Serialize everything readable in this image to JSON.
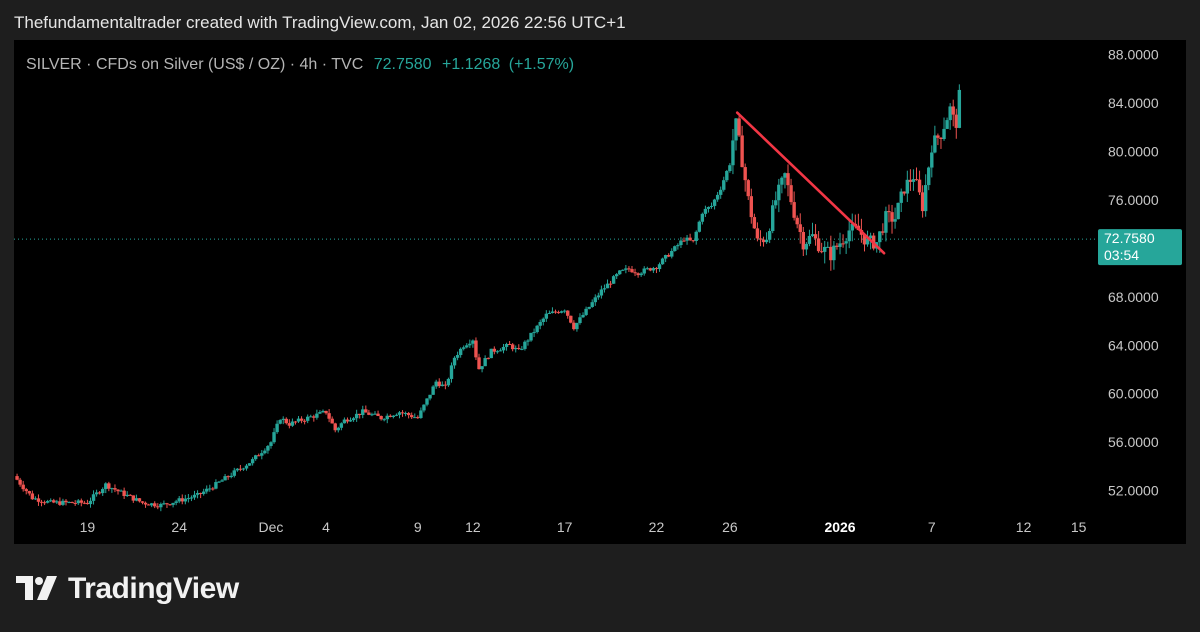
{
  "header": {
    "caption": "Thefundamentaltrader created with TradingView.com, Jan 02, 2026 22:56 UTC+1"
  },
  "legend": {
    "symbol_text": "SILVER · CFDs on Silver (US$ / OZ) · 4h · TVC",
    "last": "72.7580",
    "change": "+1.1268",
    "change_pct": "(+1.57%)"
  },
  "price_tag": {
    "price": "72.7580",
    "countdown": "03:54"
  },
  "footer": {
    "brand": "TradingView"
  },
  "colors": {
    "up": "#26a69a",
    "down": "#ef5350",
    "trendline": "#f23645",
    "last_tag": "#26a69a",
    "axis_text": "#c8c8c8",
    "background": "#000000"
  },
  "chart_data": {
    "type": "candlestick",
    "timeframe": "4h",
    "title": "SILVER · CFDs on Silver (US$ / OZ) · 4h · TVC",
    "x_ticks": [
      {
        "label": "19",
        "t": 3.0
      },
      {
        "label": "24",
        "t": 8.0
      },
      {
        "label": "Dec",
        "t": 13.0
      },
      {
        "label": "4",
        "t": 16.0
      },
      {
        "label": "9",
        "t": 21.0
      },
      {
        "label": "12",
        "t": 24.0
      },
      {
        "label": "17",
        "t": 29.0
      },
      {
        "label": "22",
        "t": 34.0
      },
      {
        "label": "26",
        "t": 38.0
      },
      {
        "label": "2026",
        "t": 44.0,
        "bold": true
      },
      {
        "label": "7",
        "t": 49.0
      },
      {
        "label": "12",
        "t": 54.0
      },
      {
        "label": "15",
        "t": 57.0
      }
    ],
    "y_ticks": [
      "88.0000",
      "84.0000",
      "80.0000",
      "76.0000",
      "68.0000",
      "64.0000",
      "60.0000",
      "56.0000",
      "52.0000"
    ],
    "ylim": [
      50.4,
      89.2
    ],
    "xlim": [
      -1.0,
      58.0
    ],
    "last_price": 72.758,
    "trendline": {
      "start": {
        "t": 38.4,
        "price": 83.2
      },
      "end": {
        "t": 46.4,
        "price": 71.6
      }
    },
    "anchors": [
      [
        -1.0,
        53.2
      ],
      [
        0.0,
        51.4
      ],
      [
        1.0,
        51.0
      ],
      [
        2.0,
        51.0
      ],
      [
        3.0,
        51.0
      ],
      [
        4.0,
        52.5
      ],
      [
        5.0,
        51.7
      ],
      [
        6.0,
        51.0
      ],
      [
        7.0,
        50.8
      ],
      [
        8.0,
        51.2
      ],
      [
        9.0,
        51.6
      ],
      [
        10.0,
        52.5
      ],
      [
        11.0,
        53.5
      ],
      [
        12.0,
        54.5
      ],
      [
        13.0,
        56.0
      ],
      [
        13.5,
        58.0
      ],
      [
        14.0,
        57.5
      ],
      [
        15.0,
        58.0
      ],
      [
        16.0,
        58.5
      ],
      [
        16.5,
        57.0
      ],
      [
        17.0,
        57.8
      ],
      [
        18.0,
        58.5
      ],
      [
        19.0,
        58.0
      ],
      [
        20.0,
        58.5
      ],
      [
        21.0,
        58.0
      ],
      [
        21.5,
        59.5
      ],
      [
        22.0,
        61.0
      ],
      [
        22.5,
        60.5
      ],
      [
        23.0,
        63.0
      ],
      [
        23.5,
        64.0
      ],
      [
        24.0,
        64.5
      ],
      [
        24.3,
        62.0
      ],
      [
        25.0,
        63.5
      ],
      [
        26.0,
        64.0
      ],
      [
        26.5,
        63.5
      ],
      [
        27.0,
        64.5
      ],
      [
        28.0,
        66.5
      ],
      [
        29.0,
        67.0
      ],
      [
        29.5,
        65.5
      ],
      [
        30.0,
        66.5
      ],
      [
        31.0,
        68.5
      ],
      [
        32.0,
        70.0
      ],
      [
        32.5,
        70.3
      ],
      [
        33.0,
        70.0
      ],
      [
        34.0,
        70.5
      ],
      [
        35.0,
        72.0
      ],
      [
        35.5,
        72.8
      ],
      [
        36.0,
        72.5
      ],
      [
        36.5,
        75.0
      ],
      [
        37.0,
        75.5
      ],
      [
        37.5,
        77.0
      ],
      [
        38.0,
        79.0
      ],
      [
        38.3,
        82.5
      ],
      [
        38.7,
        79.0
      ],
      [
        39.0,
        76.0
      ],
      [
        39.5,
        72.5
      ],
      [
        40.0,
        73.0
      ],
      [
        40.5,
        76.0
      ],
      [
        41.0,
        78.0
      ],
      [
        41.5,
        75.0
      ],
      [
        42.0,
        72.5
      ],
      [
        42.5,
        73.0
      ],
      [
        43.0,
        72.0
      ],
      [
        43.5,
        71.5
      ],
      [
        44.0,
        72.5
      ],
      [
        44.5,
        73.5
      ],
      [
        45.0,
        73.5
      ],
      [
        45.5,
        72.5
      ],
      [
        46.0,
        72.5
      ],
      [
        46.5,
        74.5
      ],
      [
        47.0,
        74.5
      ],
      [
        47.5,
        77.0
      ],
      [
        48.0,
        78.0
      ],
      [
        48.5,
        75.5
      ],
      [
        49.0,
        80.5
      ],
      [
        49.5,
        81.5
      ],
      [
        50.0,
        83.5
      ],
      [
        50.3,
        82.0
      ],
      [
        50.5,
        84.5
      ],
      [
        50.55,
        87.5
      ]
    ]
  }
}
